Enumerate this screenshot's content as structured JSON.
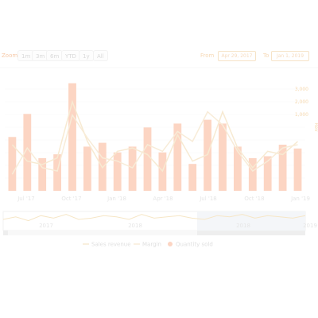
{
  "toolbar": {
    "zoom_label": "Zoom",
    "buttons": [
      "1m",
      "3m",
      "6m",
      "YTD",
      "1y",
      "All"
    ],
    "from_label": "From",
    "from_value": "Apr 29, 2017",
    "to_label": "To",
    "to_value": "Jan 1, 2019"
  },
  "chart_data": {
    "type": "bar",
    "x_ticks": [
      "Jul '17",
      "Oct '17",
      "Jan '18",
      "Apr '18",
      "Jul '18",
      "Oct '18",
      "Jan '19"
    ],
    "right_axis_ticks": [
      "3,000",
      "2,000",
      "1,000"
    ],
    "right_axis_label": "Rev",
    "series": [
      {
        "name": "Quantity sold",
        "kind": "column",
        "color": "#fcd5c3",
        "values": [
          28,
          40,
          17,
          19,
          56,
          23,
          25,
          20,
          23,
          33,
          20,
          35,
          14,
          37,
          35,
          23,
          17,
          18,
          24,
          22
        ]
      },
      {
        "name": "Sales revenue",
        "kind": "line",
        "color": "#f7ead2",
        "values": [
          1400,
          900,
          800,
          1000,
          2700,
          1500,
          700,
          1200,
          1300,
          1100,
          600,
          1700,
          900,
          1100,
          2400,
          1300,
          700,
          1200,
          1100,
          1500
        ]
      },
      {
        "name": "Margin",
        "kind": "line",
        "color": "#f8ecd8",
        "values": [
          500,
          1300,
          700,
          600,
          2300,
          1600,
          1000,
          900,
          700,
          1400,
          1200,
          1800,
          1500,
          2400,
          2000,
          1200,
          600,
          900,
          1300,
          1400
        ]
      }
    ],
    "navigator": {
      "x_ticks": [
        "2017",
        "2018",
        "2018",
        "2019"
      ],
      "series": [
        5,
        7,
        4,
        8,
        6,
        9,
        5,
        6,
        8,
        7,
        5,
        9,
        6,
        7,
        8,
        6,
        5,
        8,
        7,
        9,
        6,
        8,
        7,
        6,
        8
      ]
    },
    "legend": [
      "Sales revenue",
      "Margin",
      "Quantity sold"
    ]
  }
}
